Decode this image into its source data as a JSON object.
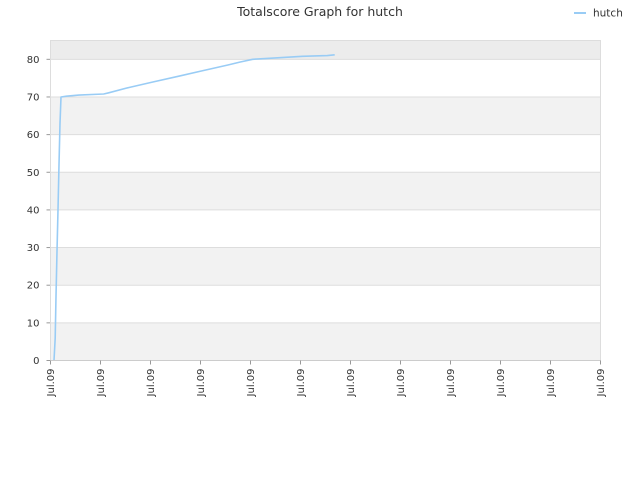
{
  "chart_data": {
    "type": "line",
    "title": "Totalscore Graph for hutch",
    "xlabel": "",
    "ylabel": "",
    "ylim": [
      0,
      85
    ],
    "yticks": [
      0,
      10,
      20,
      30,
      40,
      50,
      60,
      70,
      80
    ],
    "xtick_labels": [
      "Jul.09",
      "Jul.09",
      "Jul.09",
      "Jul.09",
      "Jul.09",
      "Jul.09",
      "Jul.09",
      "Jul.09",
      "Jul.09",
      "Jul.09",
      "Jul.09",
      "Jul.09"
    ],
    "grid": true,
    "legend_position": "top-right",
    "colors": {
      "series": "#99ccf5",
      "band": "#f2f2f2",
      "top_band": "#ececec",
      "grid": "#dddddd",
      "text": "#333333"
    },
    "series": [
      {
        "name": "hutch",
        "points": [
          [
            0.0,
            0
          ],
          [
            0.5,
            6
          ],
          [
            0.8,
            17
          ],
          [
            1.2,
            29
          ],
          [
            1.6,
            40
          ],
          [
            2.0,
            52
          ],
          [
            2.4,
            63
          ],
          [
            2.8,
            70
          ],
          [
            5,
            70.2
          ],
          [
            10,
            70.5
          ],
          [
            20,
            70.8
          ],
          [
            22,
            71.1
          ],
          [
            30,
            72.5
          ],
          [
            40,
            74.0
          ],
          [
            50,
            75.5
          ],
          [
            60,
            77.0
          ],
          [
            70,
            78.5
          ],
          [
            75,
            79.3
          ],
          [
            80,
            80.0
          ],
          [
            85,
            80.2
          ],
          [
            90,
            80.4
          ],
          [
            95,
            80.6
          ],
          [
            100,
            80.8
          ],
          [
            105,
            80.9
          ],
          [
            110,
            81.0
          ],
          [
            113,
            81.2
          ]
        ]
      }
    ]
  }
}
